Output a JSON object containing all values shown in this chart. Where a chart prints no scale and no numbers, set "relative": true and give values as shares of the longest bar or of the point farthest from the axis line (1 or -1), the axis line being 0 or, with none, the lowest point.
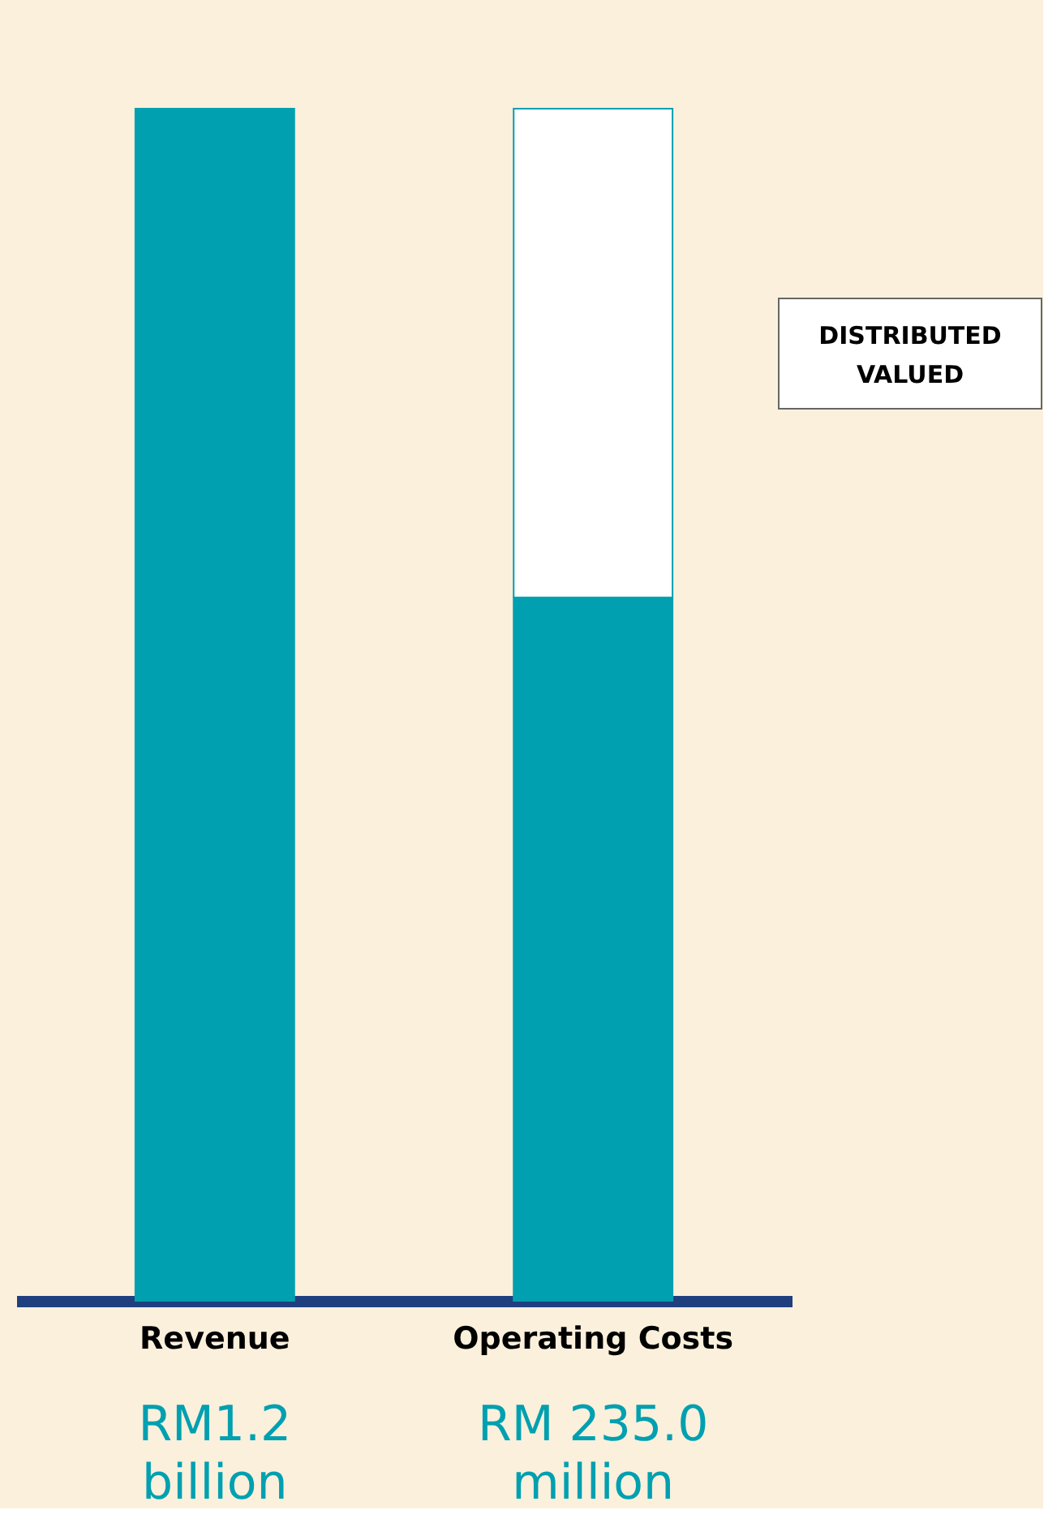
{
  "chart_data": {
    "type": "bar",
    "relative": true,
    "stacked": true,
    "categories": [
      "Revenue",
      "Operating Costs"
    ],
    "series": [
      {
        "color": "#00a0b0",
        "values": [
          1,
          0.59
        ]
      },
      {
        "color": "#ffffff",
        "values": [
          null,
          0.41
        ]
      }
    ],
    "annotations": [
      "RM1.2 billion",
      "RM 235.0 million",
      "DISTRIBUTED VALUED"
    ]
  }
}
